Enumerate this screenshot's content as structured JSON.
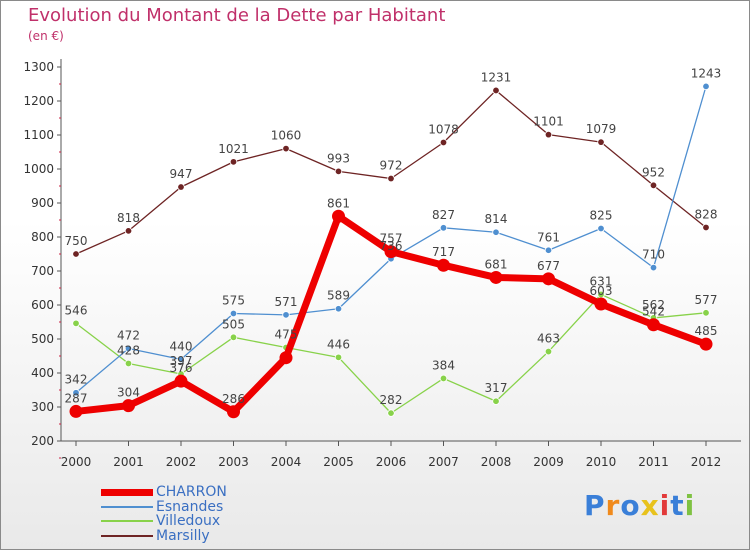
{
  "header": {
    "title": "Evolution du Montant de la Dette par Habitant",
    "subtitle": "(en €)"
  },
  "chart_data": {
    "type": "line",
    "title": "Evolution du Montant de la Dette par Habitant",
    "subtitle": "(en €)",
    "categories": [
      "2000",
      "2001",
      "2002",
      "2003",
      "2004",
      "2005",
      "2006",
      "2007",
      "2008",
      "2009",
      "2010",
      "2011",
      "2012"
    ],
    "ylim": [
      200,
      1300
    ],
    "yticks": [
      200,
      300,
      400,
      500,
      600,
      700,
      800,
      900,
      1000,
      1100,
      1200,
      1300
    ],
    "grid": false,
    "legend_position": "bottom-left",
    "series": [
      {
        "name": "CHARRON",
        "color": "#ee0000",
        "values": [
          287,
          304,
          376,
          286,
          445,
          861,
          757,
          717,
          681,
          677,
          603,
          542,
          485
        ]
      },
      {
        "name": "Esnandes",
        "color": "#4f8fd0",
        "values": [
          342,
          472,
          440,
          575,
          571,
          589,
          736,
          827,
          814,
          761,
          825,
          710,
          1243
        ]
      },
      {
        "name": "Villedoux",
        "color": "#88d24a",
        "values": [
          546,
          428,
          397,
          505,
          475,
          446,
          282,
          384,
          317,
          463,
          631,
          562,
          577
        ]
      },
      {
        "name": "Marsilly",
        "color": "#6e2424",
        "values": [
          750,
          818,
          947,
          1021,
          1060,
          993,
          972,
          1078,
          1231,
          1101,
          1079,
          952,
          828
        ]
      }
    ],
    "data_labels": [
      [
        "287",
        "304",
        "376",
        "286",
        "",
        "861",
        "757",
        "717",
        "681",
        "677",
        "603",
        "542",
        "485"
      ],
      [
        "342",
        "472",
        "440",
        "575",
        "571",
        "589",
        "736",
        "827",
        "814",
        "761",
        "825",
        "710",
        "1243"
      ],
      [
        "546",
        "428",
        "397",
        "505",
        "475",
        "446",
        "282",
        "384",
        "317",
        "463",
        "631",
        "562",
        "577"
      ],
      [
        "750",
        "818",
        "947",
        "1021",
        "1060",
        "993",
        "972",
        "1078",
        "1231",
        "1101",
        "1079",
        "952",
        "828"
      ]
    ]
  },
  "logo": {
    "text": "Proxiti",
    "colors": [
      "#3a7fd8",
      "#f08a1c",
      "#3a7fd8",
      "#e8c21c",
      "#e23a3a",
      "#3a7fd8",
      "#7fc242"
    ]
  }
}
